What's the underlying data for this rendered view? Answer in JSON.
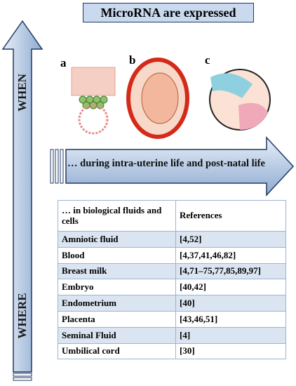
{
  "title": "MicroRNA are expressed",
  "axis_labels": {
    "when": "WHEN",
    "where": "WHERE"
  },
  "panels": [
    {
      "label": "a"
    },
    {
      "label": "b"
    },
    {
      "label": "c"
    }
  ],
  "timeline": "… during intra-uterine life and post-natal life",
  "table": {
    "header": [
      "… in biological fluids and cells",
      "References"
    ],
    "rows": [
      [
        "Amniotic fluid",
        "[4,52]"
      ],
      [
        "Blood",
        "[4,37,41,46,82]"
      ],
      [
        "Breast milk",
        "[4,71–75,77,85,89,97]"
      ],
      [
        "Embryo",
        "[40,42]"
      ],
      [
        "Endometrium",
        "[40]"
      ],
      [
        "Placenta",
        "[43,46,51]"
      ],
      [
        "Seminal Fluid",
        "[4]"
      ],
      [
        "Umbilical cord",
        "[30]"
      ]
    ]
  }
}
